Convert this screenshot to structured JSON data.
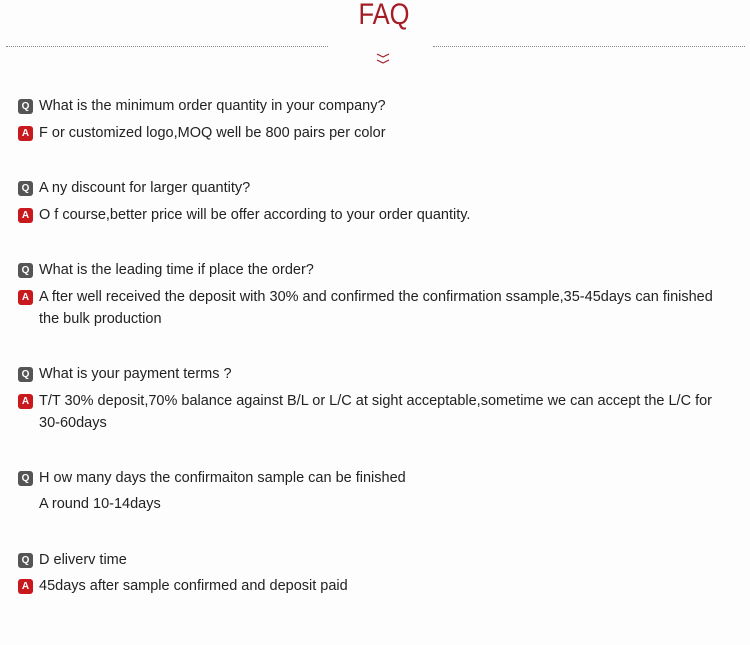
{
  "title": "FAQ",
  "colors": {
    "accent": "#a51c24",
    "question_badge": "#555555",
    "answer_badge": "#c8191f"
  },
  "badges": {
    "q": "Q",
    "a": "A"
  },
  "faq": [
    {
      "q": "What is the minimum order quantity in your company?",
      "a": "F or customized logo,MOQ well be 800 pairs per color"
    },
    {
      "q": "A ny discount for larger quantity?",
      "a": "O f course,better price will be offer according to your order quantity."
    },
    {
      "q": "What is the leading time if place the order?",
      "a": "A fter well received the deposit with 30% and confirmed the confirmation ssample,35-45days can finished the bulk production"
    },
    {
      "q": "What is your payment terms ?",
      "a": "T/T 30% deposit,70% balance against B/L or L/C at sight acceptable,sometime we can accept the L/C for 30-60days"
    },
    {
      "q": "H ow many days the confirmaiton sample can be finished",
      "a": "A round 10-14days"
    },
    {
      "q": "D eliverv time",
      "a": "45days after sample confirmed and deposit paid"
    }
  ]
}
